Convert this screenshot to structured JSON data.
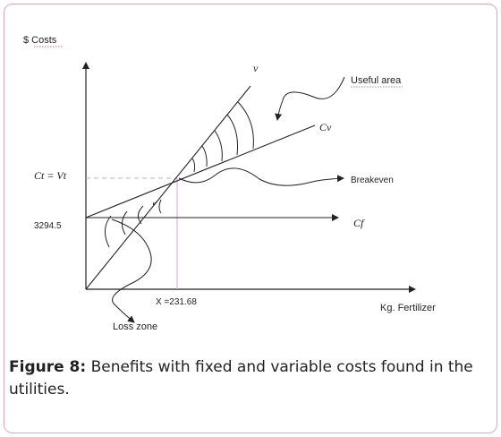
{
  "figure": {
    "y_axis_label": "$ Costs",
    "x_axis_label": "Kg. Fertilizer",
    "line_v_label": "v",
    "line_cv_label": "Cv",
    "line_cf_label": "Cf",
    "equality_label": "Ct = Vt",
    "fixed_cost_value": "3294.5",
    "breakeven_x_label": "X =231.68",
    "useful_area_label": "Useful area",
    "breakeven_label": "Breakeven",
    "loss_zone_label": "Loss  zone"
  },
  "caption": {
    "prefix": "Figure 8:",
    "text": " Benefits with fixed and variable costs found in the utilities."
  }
}
